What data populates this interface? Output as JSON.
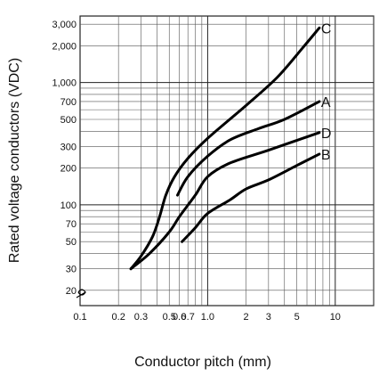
{
  "chart_data": {
    "type": "line",
    "xlabel": "Conductor pitch (mm)",
    "ylabel": "Rated voltage conductors (VDC)",
    "xscale": "log",
    "yscale": "log",
    "xlim": [
      0.1,
      20
    ],
    "ylim": [
      15,
      3500
    ],
    "x_ticks": [
      {
        "value": 0.1,
        "label": "0.1"
      },
      {
        "value": 0.2,
        "label": "0.2"
      },
      {
        "value": 0.3,
        "label": "0.3"
      },
      {
        "value": 0.5,
        "label": "0.5"
      },
      {
        "value": 0.6,
        "label": "0.6"
      },
      {
        "value": 0.7,
        "label": "0.7"
      },
      {
        "value": 1.0,
        "label": "1.0"
      },
      {
        "value": 2,
        "label": "2"
      },
      {
        "value": 3,
        "label": "3"
      },
      {
        "value": 5,
        "label": "5"
      },
      {
        "value": 10,
        "label": "10"
      }
    ],
    "y_ticks": [
      {
        "value": 20,
        "label": "20"
      },
      {
        "value": 30,
        "label": "30"
      },
      {
        "value": 50,
        "label": "50"
      },
      {
        "value": 70,
        "label": "70"
      },
      {
        "value": 100,
        "label": "100"
      },
      {
        "value": 200,
        "label": "200"
      },
      {
        "value": 300,
        "label": "300"
      },
      {
        "value": 500,
        "label": "500"
      },
      {
        "value": 700,
        "label": "700"
      },
      {
        "value": 1000,
        "label": "1,000"
      },
      {
        "value": 2000,
        "label": "2,000"
      },
      {
        "value": 3000,
        "label": "3,000"
      }
    ],
    "grid": true,
    "series": [
      {
        "name": "C",
        "points": [
          [
            0.25,
            30
          ],
          [
            0.3,
            38
          ],
          [
            0.37,
            55
          ],
          [
            0.42,
            80
          ],
          [
            0.47,
            120
          ],
          [
            0.55,
            170
          ],
          [
            0.7,
            240
          ],
          [
            1.0,
            350
          ],
          [
            2.0,
            650
          ],
          [
            3.5,
            1100
          ],
          [
            5.5,
            1900
          ],
          [
            7.5,
            2800
          ]
        ]
      },
      {
        "name": "A",
        "points": [
          [
            0.58,
            120
          ],
          [
            0.7,
            170
          ],
          [
            1.0,
            250
          ],
          [
            1.5,
            340
          ],
          [
            2.5,
            420
          ],
          [
            4.0,
            500
          ],
          [
            7.5,
            700
          ]
        ]
      },
      {
        "name": "D",
        "points": [
          [
            0.25,
            30
          ],
          [
            0.35,
            40
          ],
          [
            0.5,
            60
          ],
          [
            0.6,
            80
          ],
          [
            0.8,
            120
          ],
          [
            1.0,
            170
          ],
          [
            1.5,
            220
          ],
          [
            3.0,
            280
          ],
          [
            7.5,
            390
          ]
        ]
      },
      {
        "name": "B",
        "points": [
          [
            0.63,
            50
          ],
          [
            0.8,
            65
          ],
          [
            1.0,
            85
          ],
          [
            1.5,
            110
          ],
          [
            2.0,
            135
          ],
          [
            3.0,
            160
          ],
          [
            5.0,
            210
          ],
          [
            7.5,
            260
          ]
        ]
      }
    ]
  }
}
